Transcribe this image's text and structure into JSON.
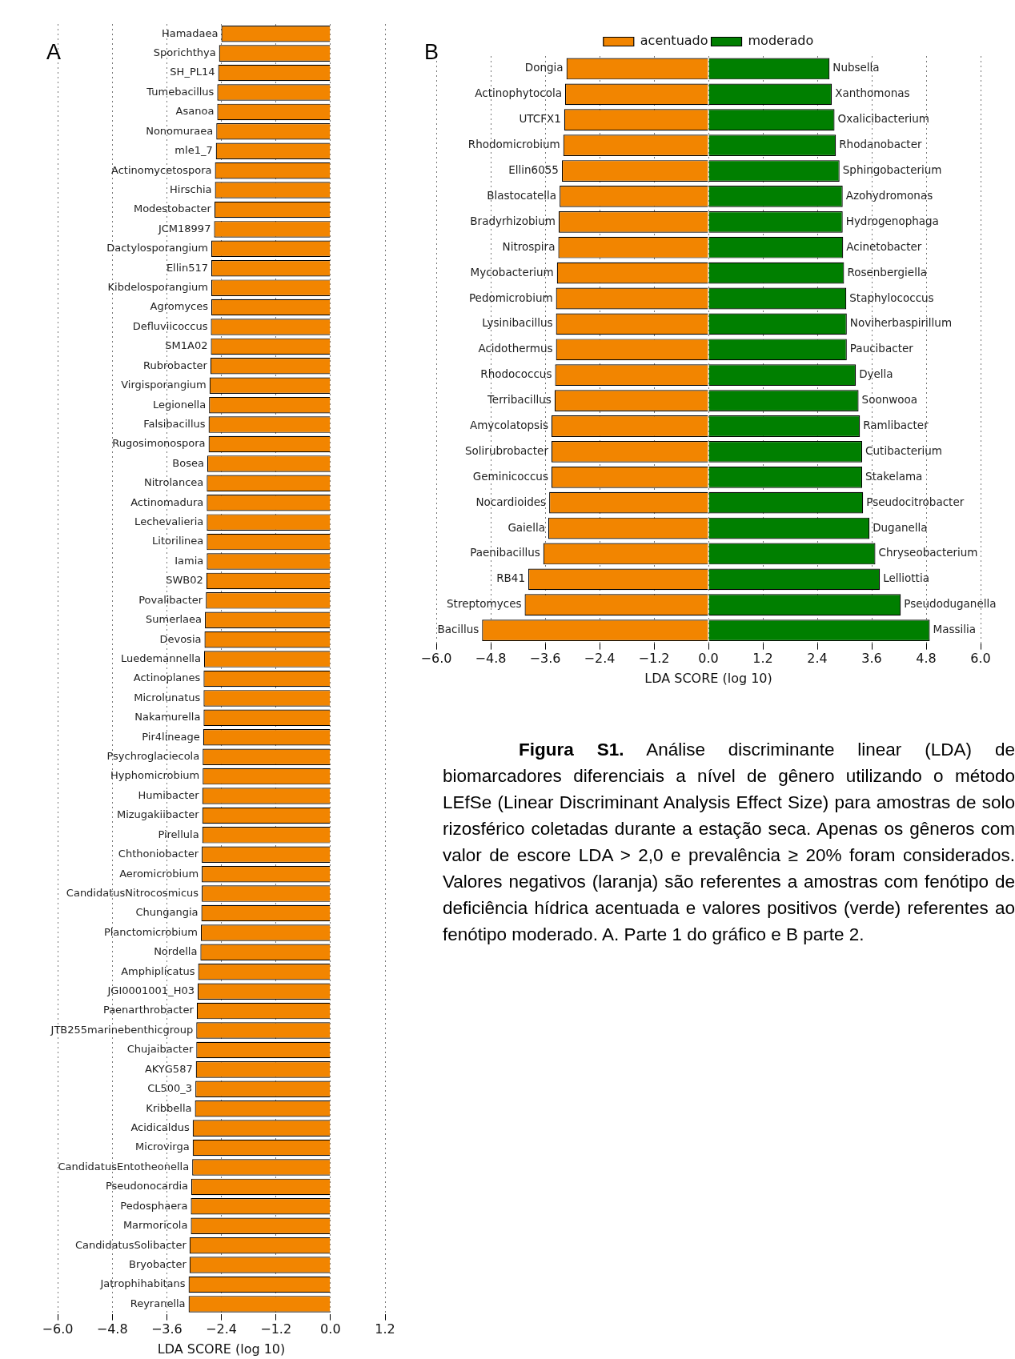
{
  "chart_data": [
    {
      "type": "bar",
      "title": "A",
      "orientation": "horizontal",
      "xlabel": "LDA SCORE (log 10)",
      "grid": "x",
      "categories": [
        "Hamadaea",
        "Sporichthya",
        "SH_PL14",
        "Tumebacillus",
        "Asanoa",
        "Nonomuraea",
        "mle1_7",
        "Actinomycetospora",
        "Hirschia",
        "Modestobacter",
        "JCM18997",
        "Dactylosporangium",
        "Ellin517",
        "Kibdelosporangium",
        "Agromyces",
        "Defluviicoccus",
        "SM1A02",
        "Rubrobacter",
        "Virgisporangium",
        "Legionella",
        "Falsibacillus",
        "Rugosimonospora",
        "Bosea",
        "Nitrolancea",
        "Actinomadura",
        "Lechevalieria",
        "Litorilinea",
        "Iamia",
        "SWB02",
        "Povalibacter",
        "Sumerlaea",
        "Devosia",
        "Luedemannella",
        "Actinoplanes",
        "Microlunatus",
        "Nakamurella",
        "Pir4lineage",
        "Psychroglaciecola",
        "Hyphomicrobium",
        "Humibacter",
        "Mizugakiibacter",
        "Pirellula",
        "Chthoniobacter",
        "Aeromicrobium",
        "CandidatusNitrocosmicus",
        "Chungangia",
        "Planctomicrobium",
        "Nordella",
        "Amphiplicatus",
        "JGI0001001_H03",
        "Paenarthrobacter",
        "JTB255marinebenthicgroup",
        "Chujaibacter",
        "AKYG587",
        "CL500_3",
        "Kribbella",
        "Acidicaldus",
        "Microvirga",
        "CandidatusEntotheonella",
        "Pseudonocardia",
        "Pedosphaera",
        "Marmoricola",
        "CandidatusSolibacter",
        "Bryobacter",
        "Jatrophihabitans",
        "Reyranella"
      ],
      "series": [
        {
          "color": "#f28500",
          "values": [
            -2.4,
            -2.45,
            -2.47,
            -2.49,
            -2.49,
            -2.51,
            -2.52,
            -2.54,
            -2.54,
            -2.55,
            -2.56,
            -2.62,
            -2.62,
            -2.62,
            -2.62,
            -2.63,
            -2.63,
            -2.64,
            -2.66,
            -2.67,
            -2.68,
            -2.68,
            -2.71,
            -2.72,
            -2.72,
            -2.72,
            -2.72,
            -2.72,
            -2.73,
            -2.74,
            -2.76,
            -2.77,
            -2.78,
            -2.79,
            -2.79,
            -2.79,
            -2.8,
            -2.81,
            -2.81,
            -2.82,
            -2.82,
            -2.82,
            -2.83,
            -2.83,
            -2.83,
            -2.84,
            -2.85,
            -2.86,
            -2.91,
            -2.92,
            -2.94,
            -2.95,
            -2.95,
            -2.96,
            -2.97,
            -2.98,
            -3.03,
            -3.03,
            -3.04,
            -3.06,
            -3.07,
            -3.07,
            -3.1,
            -3.1,
            -3.12,
            -3.12
          ]
        }
      ],
      "xlim": [
        -6.0,
        1.2
      ],
      "xticks": [
        {
          "value": -6.0,
          "label": "−6.0"
        },
        {
          "value": -4.8,
          "label": "−4.8"
        },
        {
          "value": -3.6,
          "label": "−3.6"
        },
        {
          "value": -2.4,
          "label": "−2.4"
        },
        {
          "value": -1.2,
          "label": "−1.2"
        },
        {
          "value": 0,
          "label": "0.0"
        },
        {
          "value": 1.2,
          "label": "1.2"
        }
      ]
    },
    {
      "type": "bar",
      "title": "B",
      "orientation": "horizontal",
      "stacked": true,
      "xlabel": "LDA SCORE (log 10)",
      "grid": "x",
      "legend": "top",
      "categories": [
        "Dongia",
        "Actinophytocola",
        "UTCFX1",
        "Rhodomicrobium",
        "Ellin6055",
        "Blastocatella",
        "Bradyrhizobium",
        "Nitrospira",
        "Mycobacterium",
        "Pedomicrobium",
        "Lysinibacillus",
        "Acidothermus",
        "Rhodococcus",
        "Terribacillus",
        "Amycolatopsis",
        "Solirubrobacter",
        "Geminicoccus",
        "Nocardioides",
        "Gaiella",
        "Paenibacillus",
        "RB41",
        "Streptomyces",
        "Bacillus"
      ],
      "y2_categories": [
        "Nubsella",
        "Xanthomonas",
        "Oxalicibacterium",
        "Rhodanobacter",
        "Sphingobacterium",
        "Azohydromonas",
        "Hydrogenophaga",
        "Acinetobacter",
        "Rosenbergiella",
        "Staphylococcus",
        "Noviherbaspirillum",
        "Paucibacter",
        "Dyella",
        "Soonwooa",
        "Ramlibacter",
        "Cutibacterium",
        "Stakelama",
        "Pseudocitrobacter",
        "Duganella",
        "Chryseobacterium",
        "Lelliottia",
        "Pseudoduganella",
        "Massilia"
      ],
      "series": [
        {
          "name": "acentuado",
          "color": "#f28500",
          "values": [
            -3.13,
            -3.16,
            -3.18,
            -3.2,
            -3.23,
            -3.28,
            -3.3,
            -3.31,
            -3.34,
            -3.36,
            -3.36,
            -3.36,
            -3.38,
            -3.39,
            -3.46,
            -3.46,
            -3.46,
            -3.51,
            -3.53,
            -3.64,
            -3.97,
            -4.05,
            -4.99
          ]
        },
        {
          "name": "moderado",
          "color": "#007f00",
          "values": [
            2.67,
            2.72,
            2.78,
            2.81,
            2.89,
            2.96,
            2.96,
            2.97,
            2.99,
            3.04,
            3.05,
            3.05,
            3.25,
            3.31,
            3.34,
            3.39,
            3.39,
            3.41,
            3.55,
            3.68,
            3.78,
            4.24,
            4.88
          ]
        }
      ],
      "xlim": [
        -6.0,
        6.0
      ],
      "xticks": [
        {
          "value": -6.0,
          "label": "−6.0"
        },
        {
          "value": -4.8,
          "label": "−4.8"
        },
        {
          "value": -3.6,
          "label": "−3.6"
        },
        {
          "value": -2.4,
          "label": "−2.4"
        },
        {
          "value": -1.2,
          "label": "−1.2"
        },
        {
          "value": 0,
          "label": "0.0"
        },
        {
          "value": 1.2,
          "label": "1.2"
        },
        {
          "value": 2.4,
          "label": "2.4"
        },
        {
          "value": 3.6,
          "label": "3.6"
        },
        {
          "value": 4.8,
          "label": "4.8"
        },
        {
          "value": 6.0,
          "label": "6.0"
        }
      ],
      "annotations": [
        "Figura S1.",
        "Análise discriminante linear (LDA) de biomarcadores diferenciais a nível de gênero utilizando o método LEfSe (Linear Discriminant Analysis Effect Size) para amostras de solo rizosférico coletadas durante a estação seca. Apenas os gêneros com valor de escore LDA > 2,0 e prevalência ≥ 20% foram considerados. Valores negativos (laranja) são referentes a amostras com fenótipo de deficiência hídrica acentuada e valores positivos (verde) referentes ao fenótipo moderado. A. Parte 1 do gráfico e B parte 2."
      ]
    }
  ]
}
